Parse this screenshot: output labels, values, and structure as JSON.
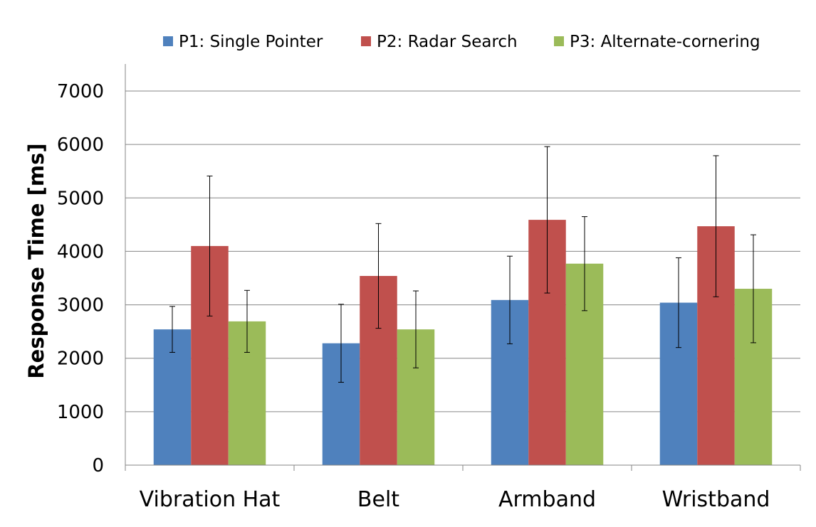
{
  "chart_data": {
    "type": "bar",
    "title": "",
    "xlabel": "",
    "ylabel": "Response Time [ms]",
    "ylim": [
      0,
      7000
    ],
    "yticks": [
      0,
      1000,
      2000,
      3000,
      4000,
      5000,
      6000,
      7000
    ],
    "grid": true,
    "legend_position": "top",
    "categories": [
      "Vibration Hat",
      "Belt",
      "Armband",
      "Wristband"
    ],
    "series": [
      {
        "name": "P1: Single Pointer",
        "color": "#4F81BD",
        "values": [
          2540,
          2280,
          3090,
          3040
        ],
        "error": [
          430,
          730,
          820,
          840
        ]
      },
      {
        "name": "P2: Radar Search",
        "color": "#C0504D",
        "values": [
          4100,
          3540,
          4590,
          4470
        ],
        "error": [
          1310,
          980,
          1370,
          1320
        ]
      },
      {
        "name": "P3: Alternate-cornering",
        "color": "#9BBB59",
        "values": [
          2690,
          2540,
          3770,
          3300
        ],
        "error": [
          580,
          720,
          880,
          1010
        ]
      }
    ]
  }
}
